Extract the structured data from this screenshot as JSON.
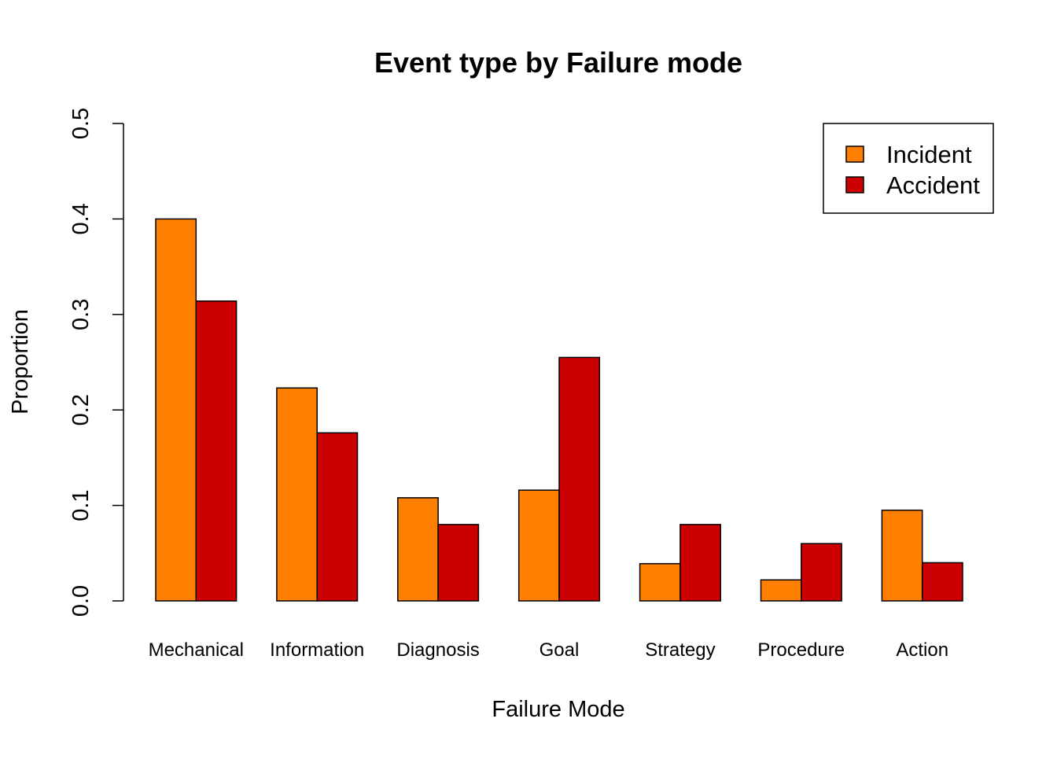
{
  "chart_data": {
    "type": "bar",
    "title": "Event type by Failure mode",
    "xlabel": "Failure Mode",
    "ylabel": "Proportion",
    "ylim": [
      0,
      0.5
    ],
    "yticks": [
      "0.0",
      "0.1",
      "0.2",
      "0.3",
      "0.4",
      "0.5"
    ],
    "ytick_values": [
      0,
      0.1,
      0.2,
      0.3,
      0.4,
      0.5
    ],
    "grid": false,
    "legend_position": "top-right",
    "categories": [
      "Mechanical",
      "Information",
      "Diagnosis",
      "Goal",
      "Strategy",
      "Procedure",
      "Action"
    ],
    "series": [
      {
        "name": "Incident",
        "color": "#FF7F00",
        "values": [
          0.4,
          0.223,
          0.108,
          0.116,
          0.039,
          0.022,
          0.095
        ]
      },
      {
        "name": "Accident",
        "color": "#CC0000",
        "values": [
          0.314,
          0.176,
          0.08,
          0.255,
          0.08,
          0.06,
          0.04
        ]
      }
    ]
  }
}
